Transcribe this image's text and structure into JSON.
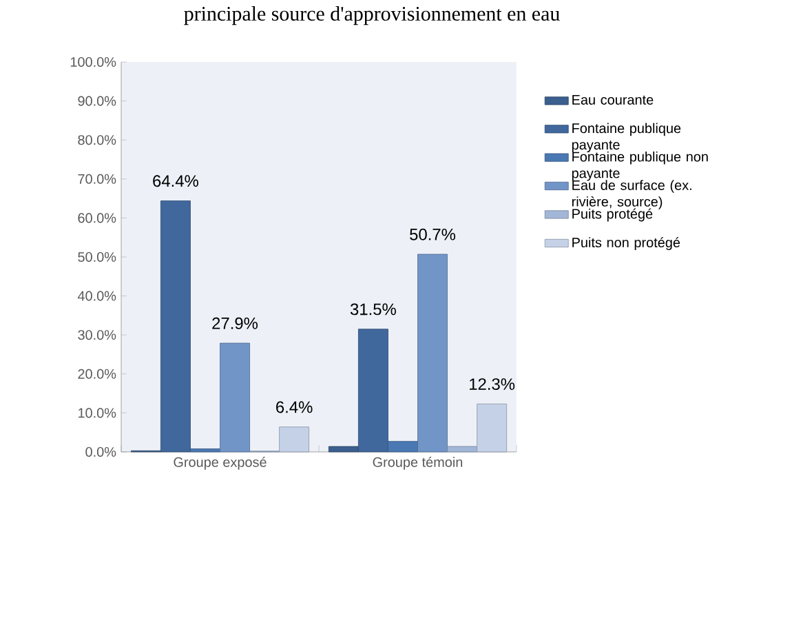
{
  "chart_data": {
    "type": "bar",
    "title": "principale source d'approvisionnement en eau",
    "categories": [
      "Groupe exposé",
      "Groupe témoin"
    ],
    "series": [
      {
        "name": "Eau courante",
        "color": "#3b5f8e",
        "values": [
          0.3,
          1.4
        ],
        "value_labels": [
          null,
          null
        ]
      },
      {
        "name": "Fontaine publique payante",
        "color": "#41689d",
        "values": [
          64.4,
          31.5
        ],
        "value_labels": [
          "64.4%",
          "31.5%"
        ]
      },
      {
        "name": "Fontaine publique non payante",
        "color": "#4a78b2",
        "values": [
          0.8,
          2.7
        ],
        "value_labels": [
          null,
          null
        ]
      },
      {
        "name": "Eau de surface (ex. rivière, source)",
        "color": "#7295c8",
        "values": [
          27.9,
          50.7
        ],
        "value_labels": [
          "27.9%",
          "50.7%"
        ]
      },
      {
        "name": "Puits protégé",
        "color": "#a2b7d8",
        "values": [
          0.2,
          1.4
        ],
        "value_labels": [
          null,
          null
        ]
      },
      {
        "name": "Puits non protégé",
        "color": "#c4d1e7",
        "values": [
          6.4,
          12.3
        ],
        "value_labels": [
          "6.4%",
          "12.3%"
        ]
      }
    ],
    "ylim": [
      0,
      100
    ],
    "yticks": [
      {
        "value": 0,
        "label": "0.0%"
      },
      {
        "value": 10,
        "label": "10.0%"
      },
      {
        "value": 20,
        "label": "20.0%"
      },
      {
        "value": 30,
        "label": "30.0%"
      },
      {
        "value": 40,
        "label": "40.0%"
      },
      {
        "value": 50,
        "label": "50.0%"
      },
      {
        "value": 60,
        "label": "60.0%"
      },
      {
        "value": 70,
        "label": "70.0%"
      },
      {
        "value": 80,
        "label": "80.0%"
      },
      {
        "value": 90,
        "label": "90.0%"
      },
      {
        "value": 100,
        "label": "100.0%"
      }
    ],
    "grid": false,
    "legend": "right"
  }
}
